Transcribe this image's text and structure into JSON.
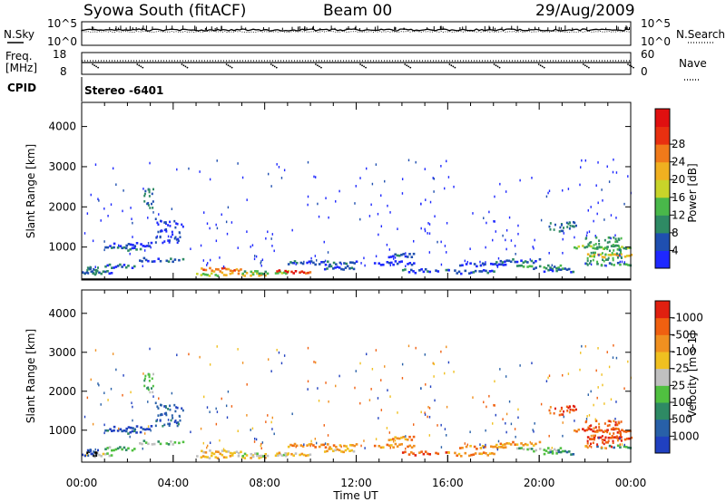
{
  "header": {
    "station": "Syowa South (fitACF)",
    "beam": "Beam 00",
    "date": "29/Aug/2009"
  },
  "noise_panel": {
    "left_label": "N.Sky",
    "right_label": "N.Search",
    "top_tick": "10^5",
    "bottom_tick": "10^0"
  },
  "freq_panel": {
    "left_label_1": "Freq.",
    "left_label_2": "[MHz]",
    "left_top_tick": "18",
    "left_bottom_tick": "8",
    "right_label": "Nave",
    "right_top_tick": "60",
    "right_bottom_tick": "0",
    "cpid_label": "CPID",
    "cpid_value": "Stereo -6401"
  },
  "power_colorbar": {
    "label": "Power [dB]",
    "ticks": [
      "4",
      "8",
      "12",
      "16",
      "20",
      "24",
      "28"
    ],
    "colors": [
      "#1e28ff",
      "#1f4fb0",
      "#2e8a64",
      "#49b84a",
      "#c8d42a",
      "#f0b020",
      "#f07a1a",
      "#e83010",
      "#e01010"
    ]
  },
  "velocity_colorbar": {
    "label": "Velocity [m s-1]",
    "ticks": [
      "1000",
      "500",
      "100",
      "25",
      "-25",
      "-100",
      "-500",
      "-1000"
    ],
    "colors": [
      "#2040c0",
      "#2860a8",
      "#2e8a64",
      "#50c040",
      "#c0c0c0",
      "#f0c020",
      "#f09020",
      "#f06010",
      "#e02010"
    ]
  },
  "chart_data": [
    {
      "type": "heatmap",
      "name": "power",
      "ylabel": "Slant Range [km]",
      "yticks": [
        1000,
        2000,
        3000,
        4000
      ],
      "ylim": [
        180,
        4600
      ],
      "xlim": [
        0,
        24
      ],
      "xticks": [
        "00:00",
        "04:00",
        "08:00",
        "12:00",
        "16:00",
        "20:00",
        "00:00"
      ],
      "xlabel": "Time UT"
    },
    {
      "type": "heatmap",
      "name": "velocity",
      "ylabel": "Slant Range [km]",
      "yticks": [
        1000,
        2000,
        3000,
        4000
      ],
      "ylim": [
        180,
        4600
      ],
      "xlim": [
        0,
        24
      ],
      "xticks": [
        "00:00",
        "04:00",
        "08:00",
        "12:00",
        "16:00",
        "20:00",
        "00:00"
      ],
      "xlabel": "Time UT"
    }
  ]
}
